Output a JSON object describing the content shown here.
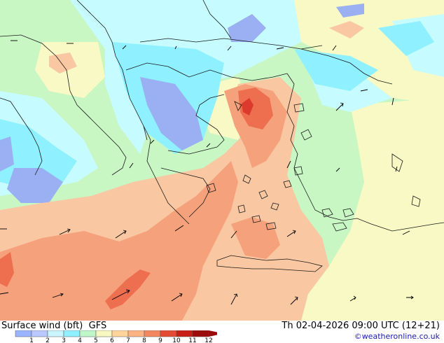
{
  "title": "Surface wind (bft)",
  "model": "GFS",
  "valid_time": "Th 02-04-2026 09:00 UTC (12+21)",
  "credit": "©weatheronline.co.uk",
  "legend": {
    "ticks": [
      "1",
      "2",
      "3",
      "4",
      "5",
      "6",
      "7",
      "8",
      "9",
      "10",
      "11",
      "12"
    ],
    "colors": [
      "#9ab4ff",
      "#b9c8ff",
      "#c9f5ff",
      "#8ff0ff",
      "#bff7c8",
      "#f7f7c0",
      "#ffd49a",
      "#fcb383",
      "#f3875f",
      "#e34c33",
      "#c81e16",
      "#9b0d0d"
    ]
  },
  "palette": {
    "level2": "#9ab0f2",
    "level3": "#8ff0ff",
    "level4": "#c6fbff",
    "level5": "#c8f7c4",
    "level6": "#f8f9c4",
    "level7": "#f9c7a2",
    "level8": "#f5a27c",
    "level9": "#ee6e50",
    "level10": "#dd3a2e",
    "coast": "#1a1a1a"
  }
}
